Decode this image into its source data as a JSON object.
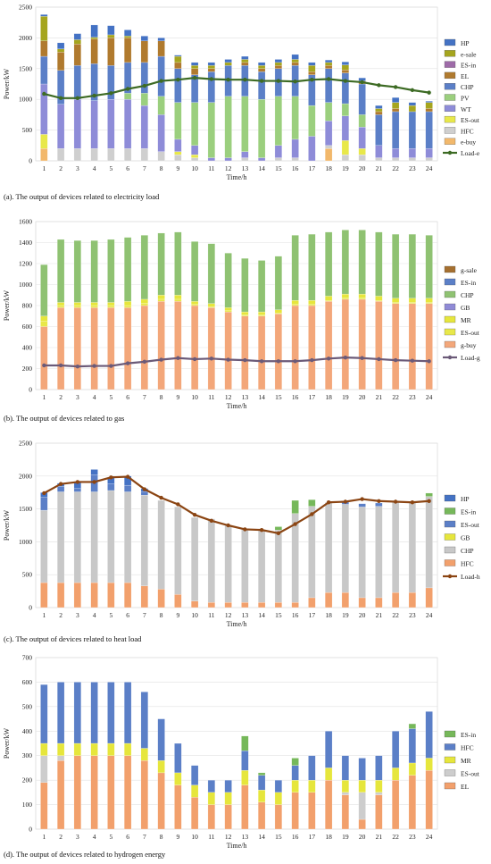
{
  "colors": {
    "HP": "#4472c4",
    "e-sale": "#a5a51e",
    "ES-in": "#9e6ba8",
    "EL": "#b07a2e",
    "CHP": "#5b7fc7",
    "PV": "#9bcf7e",
    "WT": "#8e8cd8",
    "ES-out": "#e8e84a",
    "HFC": "#cfcfcf",
    "e-buy": "#f2b86b",
    "Load-e": "#3d6b24",
    "g-sale": "#a56f2f",
    "ES-in-g": "#5b7fc7",
    "CHP-g": "#8fc272",
    "GB": "#8f8ad6",
    "MR": "#e6e63c",
    "ES-out-g": "#cdcdcd",
    "g-buy": "#f3a77a",
    "Load-g": "#6b5a78",
    "HP-h": "#4472c4",
    "ES-in-h": "#76b85a",
    "ES-out-h": "#5b7fc7",
    "GB-h": "#e6e63c",
    "CHP-h": "#c8c8c8",
    "HFC-h": "#f2a06c",
    "Load-h": "#8b4513",
    "ES-in-y": "#76b85a",
    "HFC-y": "#5b7fc7",
    "MR-y": "#e6e63c",
    "ES-out-y": "#cdcdcd",
    "EL-y": "#f2a06c"
  },
  "chart_data": [
    {
      "type": "bar",
      "caption": "(a). The output of devices related to electricity load",
      "ylabel": "Power/kW",
      "xlabel": "Time/h",
      "ylim": [
        0,
        2500
      ],
      "yticks": [
        0,
        500,
        1000,
        1500,
        2000,
        2500
      ],
      "categories": [
        "1",
        "2",
        "3",
        "4",
        "5",
        "6",
        "7",
        "8",
        "9",
        "10",
        "11",
        "12",
        "13",
        "14",
        "15",
        "16",
        "17",
        "18",
        "19",
        "20",
        "21",
        "22",
        "23",
        "24"
      ],
      "legend": [
        "HP",
        "e-sale",
        "ES-in",
        "EL",
        "CHP",
        "PV",
        "WT",
        "ES-out",
        "HFC",
        "e-buy",
        "Load-e"
      ],
      "stacks": [
        {
          "name": "e-buy",
          "color_key": "e-buy",
          "values": [
            200,
            0,
            0,
            0,
            0,
            0,
            0,
            0,
            0,
            0,
            0,
            0,
            0,
            0,
            0,
            0,
            0,
            200,
            0,
            0,
            0,
            0,
            0,
            0
          ]
        },
        {
          "name": "HFC",
          "color_key": "HFC",
          "values": [
            0,
            200,
            200,
            200,
            200,
            200,
            200,
            150,
            100,
            50,
            0,
            0,
            50,
            0,
            50,
            50,
            0,
            50,
            100,
            100,
            50,
            50,
            50,
            50
          ]
        },
        {
          "name": "ES-out",
          "color_key": "ES-out",
          "values": [
            230,
            0,
            0,
            0,
            0,
            0,
            0,
            0,
            50,
            50,
            0,
            0,
            0,
            0,
            0,
            0,
            0,
            0,
            230,
            100,
            0,
            0,
            0,
            0
          ]
        },
        {
          "name": "WT",
          "color_key": "WT",
          "values": [
            820,
            720,
            800,
            780,
            800,
            800,
            700,
            600,
            200,
            150,
            50,
            50,
            100,
            50,
            200,
            300,
            400,
            400,
            400,
            350,
            200,
            150,
            150,
            150
          ]
        },
        {
          "name": "PV",
          "color_key": "PV",
          "values": [
            0,
            0,
            0,
            0,
            0,
            100,
            200,
            300,
            600,
            700,
            900,
            1000,
            900,
            950,
            800,
            700,
            500,
            300,
            200,
            200,
            0,
            0,
            0,
            0
          ]
        },
        {
          "name": "CHP",
          "color_key": "CHP",
          "values": [
            450,
            550,
            550,
            600,
            550,
            500,
            500,
            650,
            550,
            450,
            500,
            500,
            500,
            450,
            450,
            500,
            500,
            550,
            500,
            500,
            500,
            600,
            600,
            600
          ]
        },
        {
          "name": "EL",
          "color_key": "EL",
          "values": [
            250,
            300,
            350,
            400,
            450,
            400,
            350,
            250,
            100,
            100,
            50,
            0,
            50,
            50,
            50,
            50,
            50,
            50,
            50,
            50,
            50,
            50,
            0,
            50
          ]
        },
        {
          "name": "ES-in",
          "color_key": "ES-in",
          "values": [
            0,
            0,
            0,
            0,
            0,
            0,
            0,
            0,
            0,
            0,
            0,
            0,
            0,
            0,
            0,
            0,
            0,
            0,
            0,
            0,
            0,
            0,
            0,
            0
          ]
        },
        {
          "name": "e-sale",
          "color_key": "e-sale",
          "values": [
            400,
            50,
            70,
            30,
            50,
            30,
            0,
            0,
            100,
            50,
            50,
            50,
            50,
            50,
            50,
            50,
            100,
            50,
            80,
            0,
            50,
            100,
            100,
            100
          ]
        },
        {
          "name": "HP",
          "color_key": "HP",
          "values": [
            30,
            100,
            100,
            200,
            150,
            100,
            80,
            50,
            20,
            50,
            50,
            50,
            50,
            50,
            50,
            80,
            50,
            40,
            50,
            50,
            50,
            80,
            50,
            20
          ]
        }
      ],
      "line": {
        "name": "Load-e",
        "color_key": "Load-e",
        "values": [
          1090,
          1020,
          1020,
          1060,
          1100,
          1170,
          1220,
          1300,
          1320,
          1350,
          1330,
          1320,
          1320,
          1300,
          1300,
          1290,
          1320,
          1330,
          1300,
          1280,
          1230,
          1200,
          1150,
          1110
        ]
      }
    },
    {
      "type": "bar",
      "caption": "(b). The output of devices related to gas",
      "ylabel": "Power/kW",
      "xlabel": "Time/h",
      "ylim": [
        0,
        1600
      ],
      "yticks": [
        0,
        200,
        400,
        600,
        800,
        1000,
        1200,
        1400,
        1600
      ],
      "categories": [
        "1",
        "2",
        "3",
        "4",
        "5",
        "6",
        "7",
        "8",
        "9",
        "10",
        "11",
        "12",
        "13",
        "14",
        "15",
        "16",
        "17",
        "18",
        "19",
        "20",
        "21",
        "22",
        "23",
        "24"
      ],
      "legend": [
        "g-sale",
        "ES-in",
        "CHP",
        "GB",
        "MR",
        "ES-out",
        "g-buy",
        "Load-g"
      ],
      "stacks": [
        {
          "name": "g-buy",
          "color_key": "g-buy",
          "values": [
            600,
            780,
            780,
            780,
            780,
            780,
            800,
            840,
            840,
            800,
            780,
            740,
            700,
            700,
            720,
            800,
            800,
            840,
            860,
            860,
            840,
            820,
            820,
            820
          ]
        },
        {
          "name": "ES-out",
          "color_key": "ES-out",
          "values": [
            50,
            20,
            20,
            20,
            20,
            20,
            20,
            20,
            20,
            10,
            10,
            10,
            10,
            10,
            10,
            10,
            10,
            10,
            10,
            10,
            10,
            10,
            10,
            10
          ]
        },
        {
          "name": "MR",
          "color_key": "MR",
          "values": [
            50,
            30,
            30,
            30,
            30,
            40,
            40,
            40,
            40,
            30,
            30,
            30,
            30,
            30,
            30,
            40,
            40,
            40,
            40,
            40,
            40,
            40,
            40,
            40
          ]
        },
        {
          "name": "GB",
          "color_key": "GB",
          "values": [
            0,
            0,
            0,
            0,
            0,
            0,
            0,
            0,
            0,
            0,
            0,
            0,
            0,
            0,
            0,
            0,
            0,
            0,
            0,
            0,
            0,
            0,
            0,
            0
          ]
        },
        {
          "name": "CHP",
          "color_key": "CHP-g",
          "values": [
            490,
            600,
            590,
            590,
            600,
            610,
            610,
            590,
            600,
            570,
            570,
            520,
            510,
            490,
            510,
            620,
            630,
            610,
            610,
            610,
            610,
            610,
            610,
            600
          ]
        },
        {
          "name": "ES-in",
          "color_key": "ES-in-g",
          "values": [
            0,
            0,
            0,
            0,
            0,
            0,
            0,
            0,
            0,
            0,
            0,
            0,
            0,
            0,
            0,
            0,
            0,
            0,
            0,
            0,
            0,
            0,
            0,
            0
          ]
        },
        {
          "name": "g-sale",
          "color_key": "g-sale",
          "values": [
            0,
            0,
            0,
            0,
            0,
            0,
            0,
            0,
            0,
            0,
            0,
            0,
            0,
            0,
            0,
            0,
            0,
            0,
            0,
            0,
            0,
            0,
            0,
            0
          ]
        }
      ],
      "line": {
        "name": "Load-g",
        "color_key": "Load-g",
        "values": [
          230,
          230,
          220,
          225,
          225,
          250,
          265,
          285,
          300,
          290,
          295,
          285,
          280,
          270,
          270,
          270,
          280,
          295,
          305,
          300,
          290,
          280,
          275,
          270
        ]
      }
    },
    {
      "type": "bar",
      "caption": "(c). The output of devices related to heat load",
      "ylabel": "Power/kW",
      "xlabel": "Time/h",
      "ylim": [
        0,
        2500
      ],
      "yticks": [
        0,
        500,
        1000,
        1500,
        2000,
        2500
      ],
      "categories": [
        "1",
        "2",
        "3",
        "4",
        "5",
        "6",
        "7",
        "8",
        "9",
        "10",
        "11",
        "12",
        "13",
        "14",
        "15",
        "16",
        "17",
        "18",
        "19",
        "20",
        "21",
        "22",
        "23",
        "24"
      ],
      "legend": [
        "HP",
        "ES-in",
        "ES-out",
        "GB",
        "CHP",
        "HFC",
        "Load-h"
      ],
      "stacks": [
        {
          "name": "HFC",
          "color_key": "HFC-h",
          "values": [
            380,
            380,
            380,
            380,
            380,
            380,
            330,
            280,
            200,
            100,
            80,
            80,
            80,
            80,
            80,
            80,
            150,
            230,
            230,
            150,
            150,
            230,
            230,
            300
          ]
        },
        {
          "name": "CHP",
          "color_key": "CHP-h",
          "values": [
            1100,
            1380,
            1380,
            1380,
            1400,
            1380,
            1380,
            1350,
            1330,
            1270,
            1270,
            1170,
            1110,
            1100,
            1100,
            1350,
            1390,
            1370,
            1340,
            1380,
            1390,
            1370,
            1380,
            1390
          ]
        },
        {
          "name": "GB",
          "color_key": "GB-h",
          "values": [
            0,
            0,
            0,
            0,
            0,
            0,
            0,
            0,
            0,
            0,
            0,
            0,
            0,
            0,
            0,
            0,
            0,
            0,
            0,
            0,
            0,
            0,
            0,
            0
          ]
        },
        {
          "name": "ES-out",
          "color_key": "ES-out-h",
          "values": [
            200,
            80,
            50,
            260,
            100,
            100,
            50,
            0,
            0,
            0,
            0,
            0,
            0,
            0,
            0,
            0,
            0,
            0,
            50,
            50,
            50,
            0,
            0,
            0
          ]
        },
        {
          "name": "ES-in",
          "color_key": "ES-in-h",
          "values": [
            0,
            0,
            0,
            0,
            0,
            0,
            0,
            0,
            0,
            0,
            0,
            0,
            0,
            0,
            50,
            200,
            100,
            0,
            0,
            0,
            0,
            0,
            0,
            50
          ]
        },
        {
          "name": "HP",
          "color_key": "HP-h",
          "values": [
            70,
            50,
            100,
            80,
            100,
            140,
            50,
            0,
            0,
            0,
            0,
            0,
            0,
            0,
            0,
            0,
            0,
            0,
            0,
            0,
            0,
            0,
            0,
            0
          ]
        }
      ],
      "line": {
        "name": "Load-h",
        "color_key": "Load-h",
        "values": [
          1740,
          1880,
          1910,
          1910,
          1980,
          1990,
          1800,
          1670,
          1570,
          1410,
          1320,
          1250,
          1190,
          1180,
          1130,
          1270,
          1420,
          1600,
          1610,
          1650,
          1620,
          1610,
          1600,
          1620
        ]
      }
    },
    {
      "type": "bar",
      "caption": "(d). The output of devices related to hydrogen energy",
      "ylabel": "Power/kW",
      "xlabel": "Time/h",
      "ylim": [
        0,
        700
      ],
      "yticks": [
        0,
        100,
        200,
        300,
        400,
        500,
        600,
        700
      ],
      "categories": [
        "1",
        "2",
        "3",
        "4",
        "5",
        "6",
        "7",
        "8",
        "9",
        "10",
        "11",
        "12",
        "13",
        "14",
        "15",
        "16",
        "17",
        "18",
        "19",
        "20",
        "21",
        "22",
        "23",
        "24"
      ],
      "legend": [
        "ES-in",
        "HFC",
        "MR",
        "ES-out",
        "EL"
      ],
      "stacks": [
        {
          "name": "EL",
          "color_key": "EL-y",
          "values": [
            190,
            280,
            300,
            300,
            300,
            300,
            280,
            230,
            180,
            130,
            100,
            100,
            180,
            110,
            100,
            150,
            150,
            200,
            140,
            40,
            140,
            200,
            220,
            240
          ]
        },
        {
          "name": "ES-out",
          "color_key": "ES-out-y",
          "values": [
            110,
            20,
            0,
            0,
            0,
            0,
            0,
            0,
            0,
            0,
            0,
            0,
            0,
            0,
            0,
            0,
            0,
            0,
            10,
            110,
            10,
            0,
            0,
            0
          ]
        },
        {
          "name": "MR",
          "color_key": "MR-y",
          "values": [
            50,
            50,
            50,
            50,
            50,
            50,
            50,
            50,
            50,
            50,
            50,
            50,
            60,
            50,
            50,
            50,
            50,
            50,
            50,
            50,
            50,
            50,
            50,
            50
          ]
        },
        {
          "name": "HFC",
          "color_key": "HFC-y",
          "values": [
            240,
            250,
            250,
            250,
            250,
            250,
            230,
            170,
            120,
            80,
            50,
            50,
            80,
            60,
            50,
            60,
            100,
            150,
            100,
            90,
            100,
            150,
            140,
            190
          ]
        },
        {
          "name": "ES-in",
          "color_key": "ES-in-y",
          "values": [
            0,
            0,
            0,
            0,
            0,
            0,
            0,
            0,
            0,
            0,
            0,
            0,
            60,
            10,
            0,
            30,
            0,
            0,
            0,
            0,
            0,
            0,
            20,
            0
          ]
        }
      ],
      "line": null
    }
  ]
}
